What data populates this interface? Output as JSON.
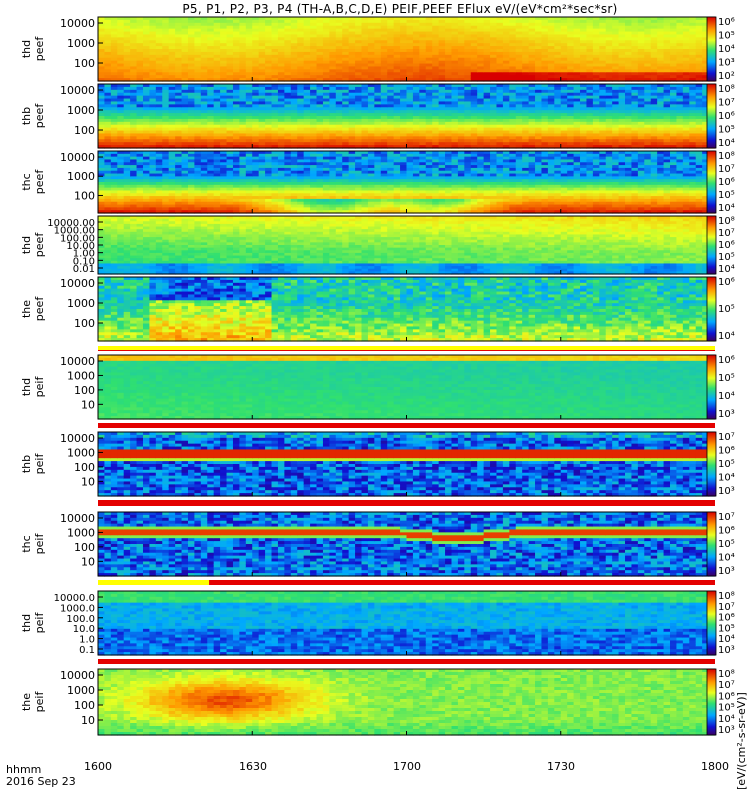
{
  "title": "P5, P1, P2, P3, P4 (TH-A,B,C,D,E) PEIF,PEEF EFlux eV/(eV*cm²*sec*sr)",
  "footer": {
    "label": "hhmm",
    "date": "2016 Sep 23"
  },
  "chart_data": {
    "type": "heatmap",
    "xlim": [
      "16:00",
      "18:00"
    ],
    "x_ticks": [
      "1600",
      "1630",
      "1700",
      "1730",
      "1800"
    ],
    "colorbar_unit": "[eV/(cm²-s-sr-eV)]",
    "panels": [
      {
        "ylabel": [
          "thd",
          "peef"
        ],
        "yticks": [
          "10000",
          "1000",
          "100"
        ],
        "cb_labels": [
          "10⁶",
          "10⁵",
          "10⁴",
          "10³",
          "10²"
        ],
        "style": "warm"
      },
      {
        "ylabel": [
          "thb",
          "peef"
        ],
        "yticks": [
          "10000",
          "1000",
          "100"
        ],
        "cb_labels": [
          "10⁸",
          "10⁷",
          "10⁶",
          "10⁵",
          "10⁴"
        ],
        "style": "banded"
      },
      {
        "ylabel": [
          "thc",
          "peef"
        ],
        "yticks": [
          "10000",
          "1000",
          "100"
        ],
        "cb_labels": [
          "10⁸",
          "10⁷",
          "10⁶",
          "10⁵",
          "10⁴"
        ],
        "style": "banded-dip"
      },
      {
        "ylabel": [
          "thd",
          "peef"
        ],
        "yticks": [
          "10000.00",
          "1000.00",
          "100.00",
          "10.00",
          "1.00",
          "0.10",
          "0.01"
        ],
        "cb_labels": [
          "10⁸",
          "10⁷",
          "10⁶",
          "10⁵",
          "10⁴"
        ],
        "style": "wide"
      },
      {
        "ylabel": [
          "the",
          "peef"
        ],
        "yticks": [
          "10000",
          "1000",
          "100"
        ],
        "cb_labels": [
          "10⁶",
          "10⁵",
          "10⁴"
        ],
        "style": "noisy"
      },
      {
        "ylabel": [
          "thd",
          "peif"
        ],
        "yticks": [
          "10000",
          "1000",
          "100",
          "10"
        ],
        "cb_labels": [
          "10⁶",
          "10⁵",
          "10⁴",
          "10³"
        ],
        "style": "green"
      },
      {
        "ylabel": [
          "thb",
          "peif"
        ],
        "yticks": [
          "10000",
          "1000",
          "100",
          "10"
        ],
        "cb_labels": [
          "10⁷",
          "10⁶",
          "10⁵",
          "10⁴",
          "10³"
        ],
        "style": "ion-band"
      },
      {
        "ylabel": [
          "thc",
          "peif"
        ],
        "yticks": [
          "10000",
          "1000",
          "100",
          "10"
        ],
        "cb_labels": [
          "10⁷",
          "10⁶",
          "10⁵",
          "10⁴",
          "10³"
        ],
        "style": "ion-dip"
      },
      {
        "ylabel": [
          "thd",
          "peif"
        ],
        "yticks": [
          "10000.0",
          "1000.0",
          "100.0",
          "10.0",
          "1.0",
          "0.1"
        ],
        "cb_labels": [
          "10⁸",
          "10⁷",
          "10⁶",
          "10⁵",
          "10⁴",
          "10³"
        ],
        "style": "ion-wide"
      },
      {
        "ylabel": [
          "the",
          "peif"
        ],
        "yticks": [
          "10000",
          "1000",
          "100",
          "10"
        ],
        "cb_labels": [
          "10⁸",
          "10⁷",
          "10⁶",
          "10⁵",
          "10⁴",
          "10³"
        ],
        "style": "ion-hot"
      }
    ]
  }
}
